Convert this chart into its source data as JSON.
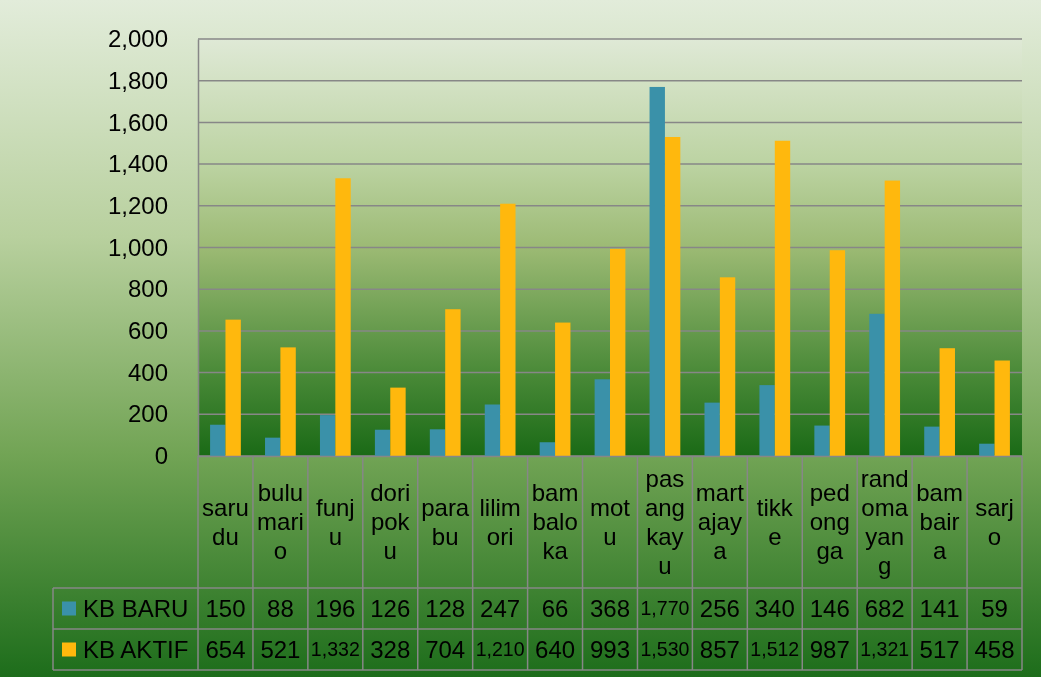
{
  "chart_data": {
    "type": "bar",
    "categories": [
      "sarudu",
      "bulumario",
      "funju",
      "doripoku",
      "parabu",
      "lilimori",
      "bambaloka",
      "motu",
      "pasangkayu",
      "martajaya",
      "tikke",
      "pedongga",
      "randomayang",
      "bambaira",
      "sarjo"
    ],
    "series": [
      {
        "name": "KB BARU",
        "color": "#3a91a9",
        "values": [
          150,
          88,
          196,
          126,
          128,
          247,
          66,
          368,
          1770,
          256,
          340,
          146,
          682,
          141,
          59
        ],
        "value_labels": [
          "150",
          "88",
          "196",
          "126",
          "128",
          "247",
          "66",
          "368",
          "1,770",
          "256",
          "340",
          "146",
          "682",
          "141",
          "59"
        ]
      },
      {
        "name": "KB AKTIF",
        "color": "#ffb80d",
        "values": [
          654,
          521,
          1332,
          328,
          704,
          1210,
          640,
          993,
          1530,
          857,
          1512,
          987,
          1321,
          517,
          458
        ],
        "value_labels": [
          "654",
          "521",
          "1,332",
          "328",
          "704",
          "1,210",
          "640",
          "993",
          "1,530",
          "857",
          "1,512",
          "987",
          "1,321",
          "517",
          "458"
        ]
      }
    ],
    "ylim": [
      0,
      2000
    ],
    "yticks": [
      0,
      200,
      400,
      600,
      800,
      {
        "value": 1000,
        "label": "1,000"
      },
      {
        "value": 1200,
        "label": "1,200"
      },
      {
        "value": 1400,
        "label": "1,400"
      },
      {
        "value": 1600,
        "label": "1,600"
      },
      {
        "value": 1800,
        "label": "1,800"
      },
      {
        "value": 2000,
        "label": "2,000"
      }
    ],
    "grid": "y",
    "legend": "bottom left"
  }
}
